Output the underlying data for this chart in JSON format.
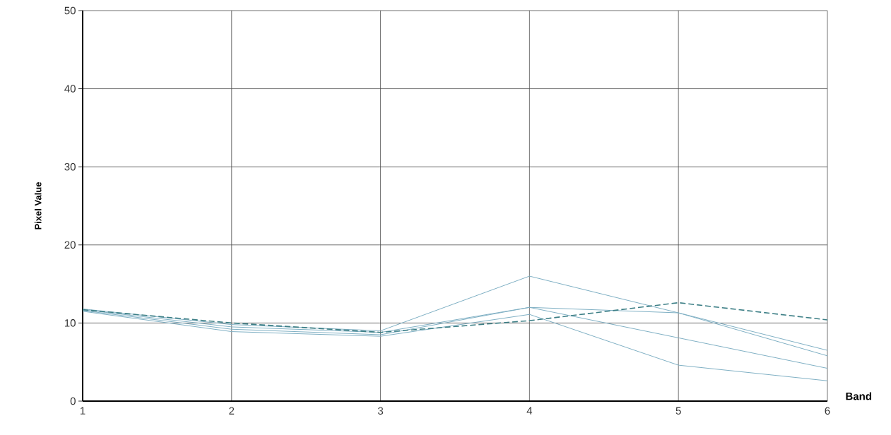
{
  "chart_data": {
    "type": "line",
    "xlabel": "Band",
    "ylabel": "Pixel Value",
    "x": [
      1,
      2,
      3,
      4,
      5,
      6
    ],
    "xlim": [
      1,
      6
    ],
    "ylim": [
      0,
      50
    ],
    "xticks": [
      1,
      2,
      3,
      4,
      5,
      6
    ],
    "yticks": [
      0,
      10,
      20,
      30,
      40,
      50
    ],
    "grid": true,
    "marker": "none",
    "series": [
      {
        "color": "#7fb0c4",
        "line_style": "solid",
        "values": [
          11.8,
          9.8,
          9.0,
          16,
          11.3,
          5.8
        ]
      },
      {
        "color": "#7fb0c4",
        "line_style": "solid",
        "values": [
          11.7,
          9.5,
          8.8,
          12,
          11.3,
          6.5
        ]
      },
      {
        "color": "#7fb0c4",
        "line_style": "solid",
        "values": [
          11.6,
          9.2,
          8.5,
          12,
          8.1,
          4.2
        ]
      },
      {
        "color": "#7fb0c4",
        "line_style": "solid",
        "values": [
          11.5,
          8.9,
          8.3,
          11.1,
          4.6,
          2.6
        ]
      },
      {
        "color": "#3d7f86",
        "line_style": "dashed",
        "values": [
          11.7,
          10.0,
          8.8,
          10.3,
          12.6,
          10.4
        ]
      }
    ]
  }
}
